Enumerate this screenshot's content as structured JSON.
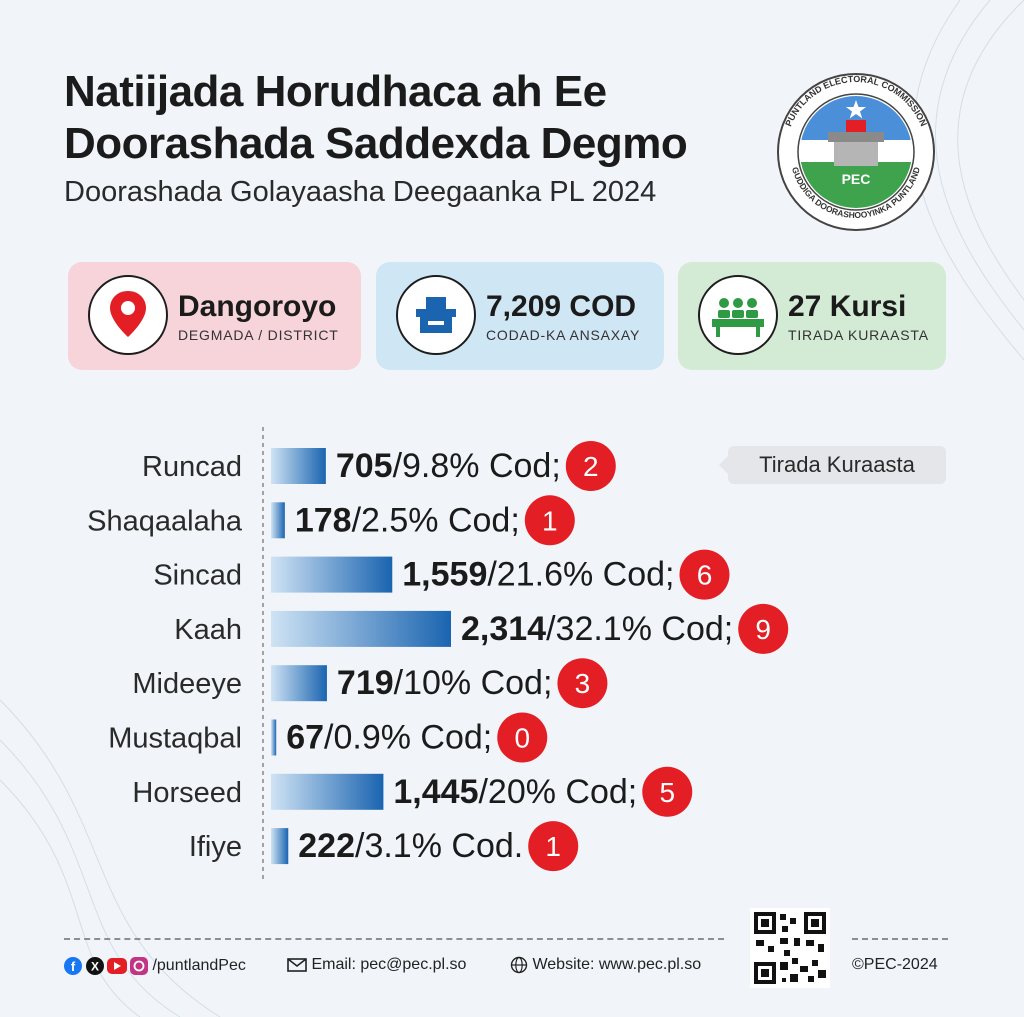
{
  "header": {
    "title_line1": "Natiijada Horudhaca ah Ee",
    "title_line2": "Doorashada Saddexda Degmo",
    "subtitle": "Doorashada Golayaasha Deegaanka PL 2024"
  },
  "logo": {
    "ring_top": "PUNTLAND ELECTORAL COMMISSION",
    "ring_bottom": "GUDDIGA DOORASHOOYINKA PUNTLAND",
    "center_label": "PEC",
    "icon": "ballot-box-star-icon"
  },
  "cards": {
    "district": {
      "value": "Dangoroyo",
      "label": "DEGMADA / DISTRICT",
      "icon": "location-pin-icon",
      "bg": "#f7d3da"
    },
    "votes": {
      "value": "7,209 COD",
      "label": "CODAD-KA ANSAXAY",
      "icon": "ballot-box-icon",
      "bg": "#cfe6f5"
    },
    "seats": {
      "value": "27 Kursi",
      "label": "TIRADA KURAASTA",
      "icon": "council-seats-icon",
      "bg": "#d3ebd4"
    }
  },
  "chart_data": {
    "type": "bar",
    "orientation": "horizontal",
    "categories": [
      "Runcad",
      "Shaqaalaha",
      "Sincad",
      "Kaah",
      "Mideeye",
      "Mustaqbal",
      "Horseed",
      "Ifiye"
    ],
    "values": [
      705,
      178,
      1559,
      2314,
      719,
      67,
      1445,
      222
    ],
    "value_labels": [
      "705",
      "178",
      "1,559",
      "2,314",
      "719",
      "67",
      "1,445",
      "222"
    ],
    "suffixes": [
      "/9.8% Cod;",
      "/2.5% Cod;",
      "/21.6% Cod;",
      "/32.1% Cod;",
      "/10% Cod;",
      "/0.9% Cod;",
      "/20% Cod;",
      "/3.1% Cod."
    ],
    "seats": [
      2,
      1,
      6,
      9,
      3,
      0,
      5,
      1
    ],
    "legend": "Tirada Kuraasta",
    "colors": {
      "bar_start": "#cfe3f4",
      "bar_end": "#1a64b0",
      "seat_badge": "#e31e24"
    }
  },
  "footer": {
    "social": "/puntlandPec",
    "email": "Email: pec@pec.pl.so",
    "website": "Website: www.pec.pl.so",
    "copyright": "©PEC-2024",
    "social_icons": [
      "facebook-icon",
      "x-icon",
      "youtube-icon",
      "instagram-icon"
    ]
  }
}
